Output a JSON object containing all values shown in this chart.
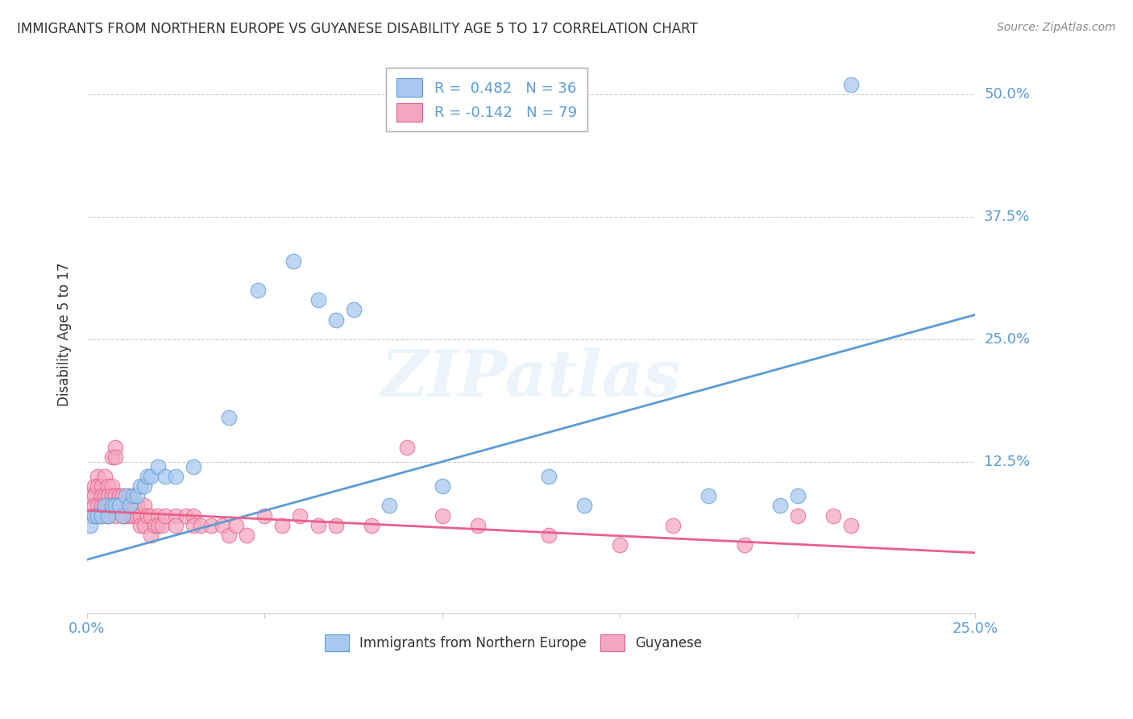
{
  "title": "IMMIGRANTS FROM NORTHERN EUROPE VS GUYANESE DISABILITY AGE 5 TO 17 CORRELATION CHART",
  "source": "Source: ZipAtlas.com",
  "ylabel": "Disability Age 5 to 17",
  "ylabel_right_ticks": [
    "50.0%",
    "37.5%",
    "25.0%",
    "12.5%"
  ],
  "ylabel_right_vals": [
    0.5,
    0.375,
    0.25,
    0.125
  ],
  "xlim": [
    0.0,
    0.25
  ],
  "ylim": [
    -0.03,
    0.54
  ],
  "legend_r1": "R =  0.482   N = 36",
  "legend_r2": "R = -0.142   N = 79",
  "legend_label1": "Immigrants from Northern Europe",
  "legend_label2": "Guyanese",
  "blue_color": "#A8C8F0",
  "pink_color": "#F4A8C0",
  "blue_line_color": "#5B9BD5",
  "pink_line_color": "#E8608A",
  "blue_scatter": [
    [
      0.001,
      0.06
    ],
    [
      0.002,
      0.07
    ],
    [
      0.003,
      0.07
    ],
    [
      0.004,
      0.07
    ],
    [
      0.005,
      0.08
    ],
    [
      0.006,
      0.07
    ],
    [
      0.007,
      0.08
    ],
    [
      0.008,
      0.08
    ],
    [
      0.009,
      0.08
    ],
    [
      0.01,
      0.07
    ],
    [
      0.011,
      0.09
    ],
    [
      0.012,
      0.08
    ],
    [
      0.013,
      0.09
    ],
    [
      0.014,
      0.09
    ],
    [
      0.015,
      0.1
    ],
    [
      0.016,
      0.1
    ],
    [
      0.017,
      0.11
    ],
    [
      0.018,
      0.11
    ],
    [
      0.02,
      0.12
    ],
    [
      0.022,
      0.11
    ],
    [
      0.025,
      0.11
    ],
    [
      0.03,
      0.12
    ],
    [
      0.04,
      0.17
    ],
    [
      0.048,
      0.3
    ],
    [
      0.058,
      0.33
    ],
    [
      0.065,
      0.29
    ],
    [
      0.07,
      0.27
    ],
    [
      0.075,
      0.28
    ],
    [
      0.085,
      0.08
    ],
    [
      0.1,
      0.1
    ],
    [
      0.13,
      0.11
    ],
    [
      0.14,
      0.08
    ],
    [
      0.175,
      0.09
    ],
    [
      0.195,
      0.08
    ],
    [
      0.2,
      0.09
    ],
    [
      0.215,
      0.51
    ]
  ],
  "pink_scatter": [
    [
      0.001,
      0.09
    ],
    [
      0.001,
      0.07
    ],
    [
      0.002,
      0.1
    ],
    [
      0.002,
      0.09
    ],
    [
      0.002,
      0.08
    ],
    [
      0.003,
      0.11
    ],
    [
      0.003,
      0.1
    ],
    [
      0.003,
      0.08
    ],
    [
      0.003,
      0.07
    ],
    [
      0.004,
      0.1
    ],
    [
      0.004,
      0.09
    ],
    [
      0.004,
      0.08
    ],
    [
      0.004,
      0.07
    ],
    [
      0.005,
      0.11
    ],
    [
      0.005,
      0.09
    ],
    [
      0.005,
      0.08
    ],
    [
      0.006,
      0.1
    ],
    [
      0.006,
      0.09
    ],
    [
      0.006,
      0.08
    ],
    [
      0.006,
      0.07
    ],
    [
      0.007,
      0.13
    ],
    [
      0.007,
      0.1
    ],
    [
      0.007,
      0.09
    ],
    [
      0.007,
      0.08
    ],
    [
      0.008,
      0.14
    ],
    [
      0.008,
      0.13
    ],
    [
      0.008,
      0.09
    ],
    [
      0.008,
      0.07
    ],
    [
      0.009,
      0.09
    ],
    [
      0.009,
      0.08
    ],
    [
      0.01,
      0.09
    ],
    [
      0.01,
      0.08
    ],
    [
      0.01,
      0.07
    ],
    [
      0.011,
      0.08
    ],
    [
      0.011,
      0.07
    ],
    [
      0.012,
      0.09
    ],
    [
      0.012,
      0.07
    ],
    [
      0.013,
      0.08
    ],
    [
      0.013,
      0.07
    ],
    [
      0.014,
      0.08
    ],
    [
      0.014,
      0.07
    ],
    [
      0.015,
      0.07
    ],
    [
      0.015,
      0.06
    ],
    [
      0.016,
      0.08
    ],
    [
      0.016,
      0.06
    ],
    [
      0.017,
      0.07
    ],
    [
      0.018,
      0.07
    ],
    [
      0.018,
      0.05
    ],
    [
      0.019,
      0.06
    ],
    [
      0.02,
      0.07
    ],
    [
      0.02,
      0.06
    ],
    [
      0.021,
      0.06
    ],
    [
      0.022,
      0.07
    ],
    [
      0.025,
      0.07
    ],
    [
      0.025,
      0.06
    ],
    [
      0.028,
      0.07
    ],
    [
      0.03,
      0.07
    ],
    [
      0.03,
      0.06
    ],
    [
      0.032,
      0.06
    ],
    [
      0.035,
      0.06
    ],
    [
      0.038,
      0.06
    ],
    [
      0.04,
      0.05
    ],
    [
      0.042,
      0.06
    ],
    [
      0.045,
      0.05
    ],
    [
      0.05,
      0.07
    ],
    [
      0.055,
      0.06
    ],
    [
      0.06,
      0.07
    ],
    [
      0.065,
      0.06
    ],
    [
      0.07,
      0.06
    ],
    [
      0.08,
      0.06
    ],
    [
      0.09,
      0.14
    ],
    [
      0.1,
      0.07
    ],
    [
      0.11,
      0.06
    ],
    [
      0.13,
      0.05
    ],
    [
      0.15,
      0.04
    ],
    [
      0.165,
      0.06
    ],
    [
      0.185,
      0.04
    ],
    [
      0.2,
      0.07
    ],
    [
      0.21,
      0.07
    ],
    [
      0.215,
      0.06
    ]
  ],
  "blue_trendline": [
    [
      0.0,
      0.025
    ],
    [
      0.25,
      0.275
    ]
  ],
  "pink_trendline": [
    [
      0.0,
      0.075
    ],
    [
      0.25,
      0.032
    ]
  ],
  "watermark": "ZIPatlas",
  "background_color": "#FFFFFF",
  "grid_color": "#CCCCCC"
}
